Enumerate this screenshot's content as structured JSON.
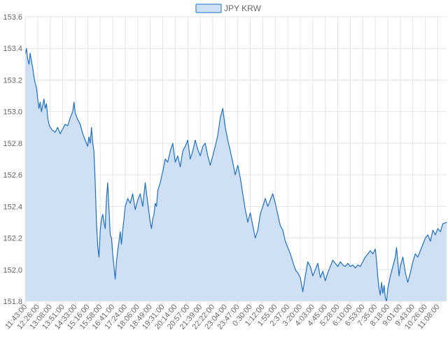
{
  "colors": {
    "line": "#1f6fc4",
    "fill": "#cfe0f4",
    "grid": "#e4e4e4",
    "axis_text": "#666666",
    "legend_border": "#1f6fc4",
    "background": "#ffffff"
  },
  "chart_data": {
    "type": "area",
    "title": "",
    "xlabel": "",
    "ylabel": "",
    "legend_position": "top-center",
    "grid": true,
    "ylim": [
      151.8,
      153.6
    ],
    "y_ticks": [
      "151.8",
      "152.0",
      "152.2",
      "152.4",
      "152.6",
      "152.8",
      "153.0",
      "153.2",
      "153.4",
      "153.6"
    ],
    "x_tick_labels": [
      "11:43:00",
      "12:26:00",
      "13:08:00",
      "13:51:00",
      "14:33:00",
      "15:16:00",
      "15:58:00",
      "16:41:00",
      "17:24:00",
      "18:06:00",
      "18:49:00",
      "19:31:00",
      "20:14:00",
      "20:57:00",
      "21:39:00",
      "22:22:00",
      "23:04:00",
      "23:47:00",
      "0:30:00",
      "1:12:00",
      "1:55:00",
      "2:37:00",
      "3:20:00",
      "4:03:00",
      "4:45:00",
      "5:28:00",
      "6:10:00",
      "6:53:00",
      "7:35:00",
      "8:18:00",
      "9:01:00",
      "9:43:00",
      "10:26:00",
      "11:08:00"
    ],
    "series": [
      {
        "name": "JPY KRW",
        "points": [
          [
            0,
            153.36
          ],
          [
            0.1,
            153.4
          ],
          [
            0.2,
            153.33
          ],
          [
            0.3,
            153.3
          ],
          [
            0.4,
            153.37
          ],
          [
            0.5,
            153.32
          ],
          [
            0.6,
            153.28
          ],
          [
            0.7,
            153.22
          ],
          [
            0.8,
            153.18
          ],
          [
            0.9,
            153.15
          ],
          [
            1.0,
            153.08
          ],
          [
            1.1,
            153.02
          ],
          [
            1.2,
            153.06
          ],
          [
            1.3,
            153.0
          ],
          [
            1.4,
            153.04
          ],
          [
            1.5,
            153.08
          ],
          [
            1.6,
            153.02
          ],
          [
            1.7,
            153.05
          ],
          [
            1.8,
            152.96
          ],
          [
            1.9,
            152.92
          ],
          [
            2.0,
            152.9
          ],
          [
            2.2,
            152.88
          ],
          [
            2.4,
            152.87
          ],
          [
            2.6,
            152.9
          ],
          [
            2.8,
            152.86
          ],
          [
            3.0,
            152.89
          ],
          [
            3.2,
            152.92
          ],
          [
            3.4,
            152.91
          ],
          [
            3.6,
            152.96
          ],
          [
            3.8,
            153.0
          ],
          [
            3.9,
            153.06
          ],
          [
            4.0,
            152.99
          ],
          [
            4.2,
            152.95
          ],
          [
            4.4,
            152.92
          ],
          [
            4.6,
            152.86
          ],
          [
            4.8,
            152.82
          ],
          [
            5.0,
            152.78
          ],
          [
            5.1,
            152.84
          ],
          [
            5.2,
            152.8
          ],
          [
            5.3,
            152.9
          ],
          [
            5.4,
            152.8
          ],
          [
            5.5,
            152.75
          ],
          [
            5.6,
            152.55
          ],
          [
            5.7,
            152.3
          ],
          [
            5.8,
            152.15
          ],
          [
            5.9,
            152.08
          ],
          [
            6.0,
            152.25
          ],
          [
            6.1,
            152.32
          ],
          [
            6.2,
            152.35
          ],
          [
            6.3,
            152.3
          ],
          [
            6.4,
            152.26
          ],
          [
            6.5,
            152.45
          ],
          [
            6.6,
            152.55
          ],
          [
            6.7,
            152.38
          ],
          [
            6.8,
            152.22
          ],
          [
            6.9,
            152.2
          ],
          [
            7.0,
            152.1
          ],
          [
            7.1,
            152.02
          ],
          [
            7.2,
            151.94
          ],
          [
            7.3,
            152.05
          ],
          [
            7.4,
            152.12
          ],
          [
            7.5,
            152.18
          ],
          [
            7.6,
            152.24
          ],
          [
            7.7,
            152.16
          ],
          [
            7.8,
            152.25
          ],
          [
            7.9,
            152.32
          ],
          [
            8.0,
            152.4
          ],
          [
            8.2,
            152.45
          ],
          [
            8.4,
            152.42
          ],
          [
            8.6,
            152.48
          ],
          [
            8.8,
            152.38
          ],
          [
            9.0,
            152.44
          ],
          [
            9.2,
            152.48
          ],
          [
            9.4,
            152.4
          ],
          [
            9.6,
            152.55
          ],
          [
            9.8,
            152.42
          ],
          [
            10.0,
            152.3
          ],
          [
            10.1,
            152.26
          ],
          [
            10.2,
            152.32
          ],
          [
            10.3,
            152.35
          ],
          [
            10.4,
            152.42
          ],
          [
            10.5,
            152.4
          ],
          [
            10.6,
            152.5
          ],
          [
            10.8,
            152.55
          ],
          [
            11.0,
            152.62
          ],
          [
            11.2,
            152.7
          ],
          [
            11.4,
            152.68
          ],
          [
            11.6,
            152.75
          ],
          [
            11.8,
            152.8
          ],
          [
            12.0,
            152.68
          ],
          [
            12.2,
            152.72
          ],
          [
            12.4,
            152.65
          ],
          [
            12.6,
            152.75
          ],
          [
            12.8,
            152.78
          ],
          [
            13.0,
            152.82
          ],
          [
            13.2,
            152.7
          ],
          [
            13.4,
            152.75
          ],
          [
            13.6,
            152.82
          ],
          [
            13.8,
            152.76
          ],
          [
            14.0,
            152.72
          ],
          [
            14.2,
            152.78
          ],
          [
            14.4,
            152.8
          ],
          [
            14.6,
            152.72
          ],
          [
            14.8,
            152.66
          ],
          [
            15.0,
            152.72
          ],
          [
            15.2,
            152.78
          ],
          [
            15.4,
            152.85
          ],
          [
            15.6,
            152.96
          ],
          [
            15.8,
            153.02
          ],
          [
            16.0,
            152.9
          ],
          [
            16.2,
            152.82
          ],
          [
            16.4,
            152.75
          ],
          [
            16.6,
            152.68
          ],
          [
            16.8,
            152.6
          ],
          [
            17.0,
            152.66
          ],
          [
            17.2,
            152.58
          ],
          [
            17.4,
            152.48
          ],
          [
            17.6,
            152.38
          ],
          [
            17.8,
            152.3
          ],
          [
            18.0,
            152.36
          ],
          [
            18.2,
            152.28
          ],
          [
            18.4,
            152.2
          ],
          [
            18.6,
            152.25
          ],
          [
            18.8,
            152.35
          ],
          [
            19.0,
            152.4
          ],
          [
            19.2,
            152.45
          ],
          [
            19.4,
            152.4
          ],
          [
            19.6,
            152.44
          ],
          [
            19.8,
            152.48
          ],
          [
            20.0,
            152.42
          ],
          [
            20.2,
            152.35
          ],
          [
            20.4,
            152.28
          ],
          [
            20.6,
            152.25
          ],
          [
            20.8,
            152.18
          ],
          [
            21.0,
            152.14
          ],
          [
            21.2,
            152.1
          ],
          [
            21.4,
            152.05
          ],
          [
            21.6,
            152.0
          ],
          [
            21.8,
            151.98
          ],
          [
            22.0,
            151.95
          ],
          [
            22.2,
            151.86
          ],
          [
            22.4,
            151.96
          ],
          [
            22.6,
            152.05
          ],
          [
            22.8,
            152.02
          ],
          [
            23.0,
            151.96
          ],
          [
            23.2,
            152.0
          ],
          [
            23.4,
            152.04
          ],
          [
            23.6,
            151.95
          ],
          [
            23.8,
            151.99
          ],
          [
            24.0,
            151.93
          ],
          [
            24.2,
            151.98
          ],
          [
            24.4,
            152.02
          ],
          [
            24.6,
            152.06
          ],
          [
            24.8,
            152.04
          ],
          [
            25.0,
            152.02
          ],
          [
            25.2,
            152.05
          ],
          [
            25.4,
            152.03
          ],
          [
            25.6,
            152.02
          ],
          [
            25.8,
            152.04
          ],
          [
            26.0,
            152.02
          ],
          [
            26.2,
            152.03
          ],
          [
            26.4,
            152.01
          ],
          [
            26.6,
            152.03
          ],
          [
            26.8,
            152.02
          ],
          [
            27.0,
            152.05
          ],
          [
            27.2,
            152.08
          ],
          [
            27.4,
            152.1
          ],
          [
            27.6,
            152.12
          ],
          [
            27.8,
            152.1
          ],
          [
            28.0,
            152.13
          ],
          [
            28.1,
            152.05
          ],
          [
            28.2,
            151.95
          ],
          [
            28.3,
            151.88
          ],
          [
            28.4,
            151.84
          ],
          [
            28.5,
            151.92
          ],
          [
            28.6,
            151.85
          ],
          [
            28.7,
            151.9
          ],
          [
            28.8,
            151.82
          ],
          [
            28.9,
            151.8
          ],
          [
            29.0,
            151.88
          ],
          [
            29.2,
            151.96
          ],
          [
            29.4,
            152.02
          ],
          [
            29.6,
            152.08
          ],
          [
            29.7,
            152.14
          ],
          [
            29.8,
            152.05
          ],
          [
            29.9,
            151.96
          ],
          [
            30.0,
            152.02
          ],
          [
            30.2,
            152.08
          ],
          [
            30.4,
            151.98
          ],
          [
            30.6,
            151.92
          ],
          [
            30.8,
            151.98
          ],
          [
            31.0,
            152.05
          ],
          [
            31.2,
            152.1
          ],
          [
            31.4,
            152.08
          ],
          [
            31.6,
            152.12
          ],
          [
            31.8,
            152.16
          ],
          [
            32.0,
            152.2
          ],
          [
            32.2,
            152.22
          ],
          [
            32.4,
            152.18
          ],
          [
            32.6,
            152.25
          ],
          [
            32.8,
            152.22
          ],
          [
            33.0,
            152.26
          ],
          [
            33.2,
            152.24
          ],
          [
            33.4,
            152.29
          ],
          [
            33.7,
            152.3
          ]
        ]
      }
    ]
  }
}
